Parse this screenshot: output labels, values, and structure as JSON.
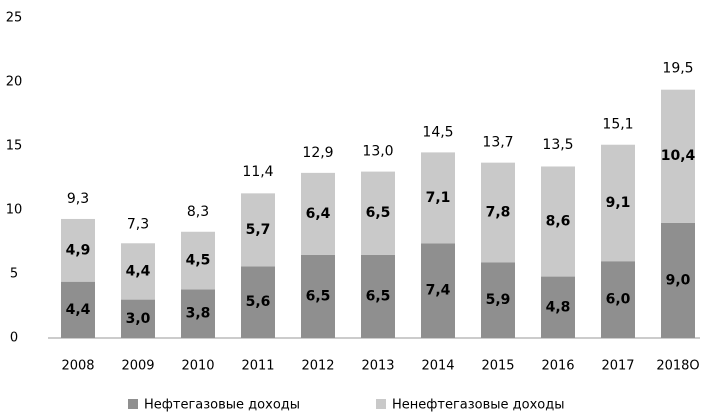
{
  "chart_data": {
    "type": "stacked_bar",
    "categories": [
      "2008",
      "2009",
      "2010",
      "2011",
      "2012",
      "2013",
      "2014",
      "2015",
      "2016",
      "2017",
      "2018О"
    ],
    "series": [
      {
        "name": "Нефтегазовые доходы",
        "color": "#8f8f8f",
        "values": [
          4.4,
          3.0,
          3.8,
          5.6,
          6.5,
          6.5,
          7.4,
          5.9,
          4.8,
          6.0,
          9.0
        ],
        "value_labels": [
          "4,4",
          "3,0",
          "3,8",
          "5,6",
          "6,5",
          "6,5",
          "7,4",
          "5,9",
          "4,8",
          "6,0",
          "9,0"
        ]
      },
      {
        "name": "Ненефтегазовые доходы",
        "color": "#c9c9c9",
        "values": [
          4.9,
          4.4,
          4.5,
          5.7,
          6.4,
          6.5,
          7.1,
          7.8,
          8.6,
          9.1,
          10.4
        ],
        "value_labels": [
          "4,9",
          "4,4",
          "4,5",
          "5,7",
          "6,4",
          "6,5",
          "7,1",
          "7,8",
          "8,6",
          "9,1",
          "10,4"
        ]
      }
    ],
    "totals": [
      9.3,
      7.3,
      8.3,
      11.4,
      12.9,
      13.0,
      14.5,
      13.7,
      13.5,
      15.1,
      19.5
    ],
    "total_labels": [
      "9,3",
      "7,3",
      "8,3",
      "11,4",
      "12,9",
      "13,0",
      "14,5",
      "13,7",
      "13,5",
      "15,1",
      "19,5"
    ],
    "ylim": [
      0,
      25
    ],
    "yticks": [
      0,
      5,
      10,
      15,
      20,
      25
    ],
    "grid": false,
    "legend": "bottom"
  }
}
